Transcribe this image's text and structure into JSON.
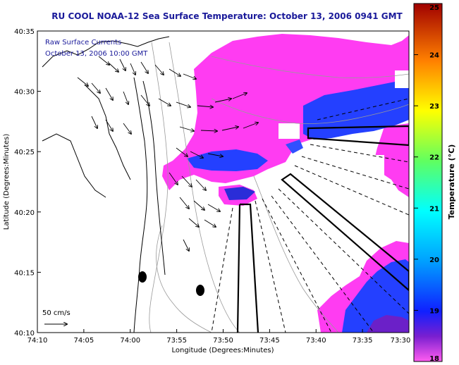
{
  "chart_data": {
    "type": "heatmap",
    "title": "RU COOL  NOAA-12  Sea Surface Temperature:  October 13, 2006 0941 GMT",
    "overlay_label_1": "Raw Surface Currents",
    "overlay_label_2": "October 13, 2006 10:00 GMT",
    "xlabel": "Longitude (Degrees:Minutes)",
    "ylabel": "Latitude (Degrees:Minutes)",
    "x_ticks": [
      "74:10",
      "74:05",
      "74:00",
      "73:55",
      "73:50",
      "73:45",
      "73:40",
      "73:35",
      "73:30"
    ],
    "y_ticks": [
      "40:35",
      "40:30",
      "40:25",
      "40:20",
      "40:15",
      "40:10"
    ],
    "xlim": [
      "74:10",
      "73:30"
    ],
    "ylim": [
      "40:10",
      "40:35"
    ],
    "scale_label": "50 cm/s",
    "colorbar": {
      "label": "Temperature (°C)",
      "min": 18,
      "max": 25,
      "ticks": [
        "18",
        "19",
        "20",
        "21",
        "22",
        "23",
        "24",
        "25"
      ],
      "colormap": "jet"
    },
    "colors": {
      "title": "#1a1a9a",
      "overlay_text": "#1a1a9a",
      "sst_warm": "#ff3cf2",
      "sst_cool": "#2440ff",
      "sst_coolest": "#6b20c8",
      "coast": "#000000",
      "bathymetry": "#9a9a9a"
    }
  }
}
